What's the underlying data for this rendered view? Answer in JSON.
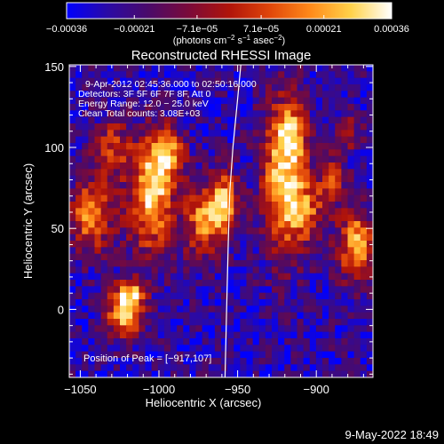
{
  "colors": {
    "background": "#000000",
    "foreground": "#ffffff",
    "colormap": [
      "#0000ff",
      "#2a0aa6",
      "#4a0a6a",
      "#7a0a3a",
      "#b0140a",
      "#e0460a",
      "#ff8a1a",
      "#ffd24a",
      "#ffffff"
    ]
  },
  "footer": {
    "date": "9-May-2022 18:49"
  },
  "chart_data": {
    "type": "heatmap",
    "title": "Reconstructed RHESSI Image",
    "xlabel": "Heliocentric X (arcsec)",
    "ylabel": "Heliocentric Y (arcsec)",
    "xlim": [
      -1057,
      -864
    ],
    "ylim": [
      -42,
      151
    ],
    "x_ticks": [
      -1050,
      -1000,
      -950,
      -900
    ],
    "x_tick_labels": [
      "−1050",
      "−1000",
      "−950",
      "−900"
    ],
    "y_ticks": [
      0,
      50,
      100,
      150
    ],
    "y_tick_labels": [
      "0",
      "50",
      "100",
      "150"
    ],
    "colorbar": {
      "range": [
        -0.00036,
        0.00036
      ],
      "ticks": [
        -0.00036,
        -0.00021,
        -7.1e-05,
        7.1e-05,
        0.00021,
        0.00036
      ],
      "tick_labels": [
        "−0.00036",
        "−0.00021",
        "−7.1e−05",
        "7.1e−05",
        "0.00021",
        "0.00036"
      ],
      "units_text": "(photons cm",
      "units_exp1": "−2",
      "units_mid": " s",
      "units_exp2": "−1",
      "units_mid2": " asec",
      "units_exp3": "−2",
      "units_end": ")"
    },
    "info_lines": [
      "9-Apr-2012 02:45:36.000 to 02:50:16.000",
      "Detectors: 3F 5F 6F 7F 8F, Att 0",
      "Energy Range: 12.0 − 25.0 keV",
      "Clean     Total counts: 3.08E+03"
    ],
    "peak_label": "Position of Peak = [−917,107]",
    "limb_points": [
      [
        -958,
        -42
      ],
      [
        -957,
        0
      ],
      [
        -956,
        40
      ],
      [
        -955,
        72
      ],
      [
        -953,
        100
      ],
      [
        -950,
        130
      ],
      [
        -948,
        151
      ]
    ],
    "grid": false,
    "sources": [
      {
        "x": -1022,
        "y": -3,
        "sx": 8,
        "sy": 10,
        "amp": 1.0
      },
      {
        "x": -1018,
        "y": 10,
        "sx": 6,
        "sy": 6,
        "amp": 0.7
      },
      {
        "x": -1043,
        "y": 58,
        "sx": 10,
        "sy": 16,
        "amp": 0.75
      },
      {
        "x": -1030,
        "y": 100,
        "sx": 8,
        "sy": 12,
        "amp": 0.55
      },
      {
        "x": -1005,
        "y": 70,
        "sx": 10,
        "sy": 24,
        "amp": 0.95
      },
      {
        "x": -995,
        "y": 95,
        "sx": 8,
        "sy": 12,
        "amp": 0.7
      },
      {
        "x": -972,
        "y": 55,
        "sx": 8,
        "sy": 16,
        "amp": 0.75
      },
      {
        "x": -958,
        "y": 65,
        "sx": 6,
        "sy": 14,
        "amp": 0.85
      },
      {
        "x": -920,
        "y": 80,
        "sx": 10,
        "sy": 32,
        "amp": 1.0
      },
      {
        "x": -917,
        "y": 107,
        "sx": 6,
        "sy": 12,
        "amp": 0.6
      },
      {
        "x": -905,
        "y": 60,
        "sx": 8,
        "sy": 12,
        "amp": 0.5
      },
      {
        "x": -875,
        "y": 40,
        "sx": 8,
        "sy": 16,
        "amp": 0.85
      },
      {
        "x": -890,
        "y": 80,
        "sx": 6,
        "sy": 10,
        "amp": 0.55
      },
      {
        "x": -880,
        "y": 110,
        "sx": 6,
        "sy": 8,
        "amp": 0.45
      }
    ]
  }
}
